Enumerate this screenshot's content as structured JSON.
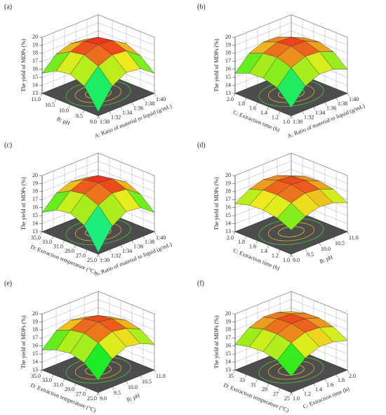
{
  "chart_data": [
    {
      "type": "surface",
      "label": "(a)",
      "zlabel": "The yield of MDPs (%)",
      "xlabel": "A: Ratio of material to liquid (g/mL)",
      "ylabel": "B: pH",
      "xlim": [
        30,
        40
      ],
      "ylim": [
        9,
        11
      ],
      "zlim": [
        13,
        20
      ],
      "xticks": [
        {
          "value": 30,
          "label": "1:30"
        },
        {
          "value": 32,
          "label": "1:32"
        },
        {
          "value": 34,
          "label": "1:34"
        },
        {
          "value": 36,
          "label": "1:36"
        },
        {
          "value": 38,
          "label": "1:38"
        },
        {
          "value": 40,
          "label": "1:40"
        }
      ],
      "yticks": [
        {
          "value": 9,
          "label": "9.0"
        },
        9.5,
        {
          "value": 10,
          "label": "10.0"
        },
        10.5,
        {
          "value": 11,
          "label": "11.0"
        }
      ],
      "zticks": [
        13,
        14,
        15,
        16,
        17,
        18,
        19,
        20
      ],
      "z": [
        [
          13.5,
          16.0,
          17.0,
          16.8,
          15.5
        ],
        [
          16.0,
          17.8,
          18.5,
          18.3,
          17.0
        ],
        [
          16.8,
          18.5,
          19.1,
          18.9,
          17.8
        ],
        [
          16.5,
          18.2,
          18.8,
          18.6,
          17.5
        ],
        [
          15.5,
          17.2,
          17.8,
          17.6,
          16.5
        ]
      ]
    },
    {
      "type": "surface",
      "label": "(b)",
      "zlabel": "The yield of MDPs (%)",
      "xlabel": "A: Ratio of material to liquid (g/mL)",
      "ylabel": "C: Extraction time (h)",
      "xlim": [
        30,
        40
      ],
      "ylim": [
        1,
        2
      ],
      "zlim": [
        13,
        20
      ],
      "xticks": [
        {
          "value": 30,
          "label": "1:30"
        },
        {
          "value": 32,
          "label": "1:32"
        },
        {
          "value": 34,
          "label": "1:34"
        },
        {
          "value": 36,
          "label": "1:36"
        },
        {
          "value": 38,
          "label": "1:38"
        },
        {
          "value": 40,
          "label": "1:40"
        }
      ],
      "yticks": [
        {
          "value": 1,
          "label": "1.0"
        },
        1.2,
        1.4,
        1.6,
        1.8,
        {
          "value": 2,
          "label": "2.0"
        }
      ],
      "zticks": [
        13,
        14,
        15,
        16,
        17,
        18,
        19,
        20
      ],
      "z": [
        [
          14.0,
          16.0,
          16.8,
          16.7,
          16.0
        ],
        [
          15.8,
          17.6,
          18.3,
          18.2,
          17.5
        ],
        [
          16.3,
          18.2,
          18.9,
          18.8,
          18.0
        ],
        [
          16.2,
          18.0,
          18.7,
          18.6,
          17.8
        ],
        [
          15.5,
          17.3,
          18.0,
          17.9,
          17.2
        ]
      ]
    },
    {
      "type": "surface",
      "label": "(c)",
      "zlabel": "The yield of MDPs (%)",
      "xlabel": "A: Ratio of material to liquid (g/mL)",
      "ylabel": "D: Extraction temperature (°C)",
      "xlim": [
        30,
        40
      ],
      "ylim": [
        25,
        35
      ],
      "zlim": [
        13,
        20
      ],
      "xticks": [
        {
          "value": 30,
          "label": "1:30"
        },
        {
          "value": 32,
          "label": "1:32"
        },
        {
          "value": 34,
          "label": "1:34"
        },
        {
          "value": 36,
          "label": "1:36"
        },
        {
          "value": 38,
          "label": "1:38"
        },
        {
          "value": 40,
          "label": "1:40"
        }
      ],
      "yticks": [
        {
          "value": 25,
          "label": "25.0"
        },
        {
          "value": 27,
          "label": "27.0"
        },
        {
          "value": 29,
          "label": "29.0"
        },
        {
          "value": 31,
          "label": "31.0"
        },
        {
          "value": 33,
          "label": "33.0"
        },
        {
          "value": 35,
          "label": "35.0"
        }
      ],
      "zticks": [
        13,
        14,
        15,
        16,
        17,
        18,
        19,
        20
      ],
      "z": [
        [
          13.2,
          15.8,
          16.9,
          16.7,
          15.4
        ],
        [
          15.9,
          17.7,
          18.5,
          18.3,
          17.0
        ],
        [
          16.7,
          18.4,
          19.1,
          18.9,
          17.8
        ],
        [
          16.4,
          18.1,
          18.8,
          18.6,
          17.5
        ],
        [
          15.4,
          17.1,
          17.8,
          17.6,
          16.5
        ]
      ]
    },
    {
      "type": "surface",
      "label": "(d)",
      "zlabel": "The yield of MDPs (%)",
      "xlabel": "B: pH",
      "ylabel": "C: Extraction time (h)",
      "xlim": [
        9,
        11
      ],
      "ylim": [
        1,
        2
      ],
      "zlim": [
        13,
        20
      ],
      "xticks": [
        {
          "value": 9,
          "label": "9.0"
        },
        9.5,
        {
          "value": 10,
          "label": "10.0"
        },
        10.5,
        {
          "value": 11,
          "label": "11.0"
        }
      ],
      "yticks": [
        {
          "value": 1,
          "label": "1.0"
        },
        1.2,
        1.4,
        1.6,
        1.8,
        {
          "value": 2,
          "label": "2.0"
        }
      ],
      "zticks": [
        13,
        14,
        15,
        16,
        17,
        18,
        19,
        20
      ],
      "z": [
        [
          16.0,
          17.0,
          17.5,
          17.3,
          16.6
        ],
        [
          16.8,
          18.0,
          18.5,
          18.3,
          17.6
        ],
        [
          17.1,
          18.3,
          18.9,
          18.7,
          17.9
        ],
        [
          17.0,
          18.2,
          18.7,
          18.5,
          17.8
        ],
        [
          16.5,
          17.6,
          18.1,
          17.9,
          17.2
        ]
      ]
    },
    {
      "type": "surface",
      "label": "(e)",
      "zlabel": "The yield of MDPs (%)",
      "xlabel": "B: pH",
      "ylabel": "D: Extraction temperature (°C)",
      "xlim": [
        9,
        11
      ],
      "ylim": [
        25,
        35
      ],
      "zlim": [
        13,
        20
      ],
      "xticks": [
        {
          "value": 9,
          "label": "9.0"
        },
        9.5,
        {
          "value": 10,
          "label": "10.0"
        },
        10.5,
        {
          "value": 11,
          "label": "11.0"
        }
      ],
      "yticks": [
        {
          "value": 25,
          "label": "25.0"
        },
        {
          "value": 27,
          "label": "27.0"
        },
        {
          "value": 29,
          "label": "29.0"
        },
        {
          "value": 31,
          "label": "31.0"
        },
        {
          "value": 33,
          "label": "33.0"
        },
        {
          "value": 35,
          "label": "35.0"
        }
      ],
      "zticks": [
        13,
        14,
        15,
        16,
        17,
        18,
        19,
        20
      ],
      "z": [
        [
          14.5,
          16.5,
          17.3,
          17.0,
          16.2
        ],
        [
          16.0,
          17.8,
          18.5,
          18.2,
          17.4
        ],
        [
          16.5,
          18.3,
          19.0,
          18.7,
          17.8
        ],
        [
          16.2,
          18.0,
          18.7,
          18.4,
          17.5
        ],
        [
          15.5,
          17.2,
          17.8,
          17.5,
          16.7
        ]
      ]
    },
    {
      "type": "surface",
      "label": "(f)",
      "zlabel": "The yield of MDPs (%)",
      "xlabel": "C: Extraction time (h)",
      "ylabel": "D: Extraction temperature (°C)",
      "xlim": [
        1,
        2
      ],
      "ylim": [
        25,
        35
      ],
      "zlim": [
        13,
        20
      ],
      "xticks": [
        {
          "value": 1,
          "label": "1.0"
        },
        1.2,
        1.4,
        1.6,
        1.8,
        {
          "value": 2,
          "label": "2.0"
        }
      ],
      "yticks": [
        25,
        27,
        29,
        31,
        33,
        35
      ],
      "zticks": [
        13,
        14,
        15,
        16,
        17,
        18,
        19,
        20
      ],
      "z": [
        [
          15.0,
          16.6,
          17.3,
          17.2,
          16.7
        ],
        [
          16.3,
          17.8,
          18.4,
          18.3,
          17.7
        ],
        [
          16.7,
          18.2,
          18.8,
          18.7,
          18.1
        ],
        [
          16.6,
          18.1,
          18.7,
          18.6,
          18.0
        ],
        [
          16.2,
          17.6,
          18.2,
          18.1,
          17.5
        ]
      ]
    }
  ]
}
